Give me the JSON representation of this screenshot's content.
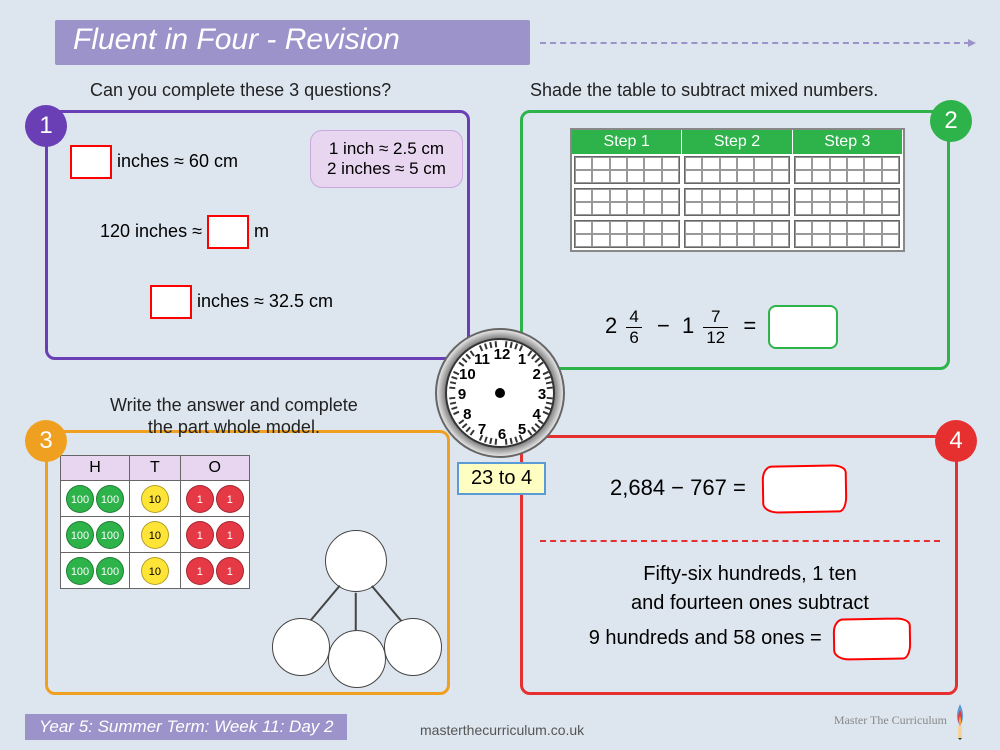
{
  "header": {
    "title": "Fluent in Four - Revision"
  },
  "panel1": {
    "color": "#6a3fb5",
    "badge": "1",
    "prompt": "Can you complete these 3 questions?",
    "line1_suffix": "inches ≈ 60 cm",
    "line2_prefix": "120 inches ≈",
    "line2_suffix": "m",
    "line3_suffix": "inches ≈ 32.5 cm",
    "hint1": "1 inch ≈ 2.5 cm",
    "hint2": "2 inches ≈ 5 cm"
  },
  "panel2": {
    "color": "#2db34a",
    "badge": "2",
    "prompt": "Shade the table to subtract mixed numbers.",
    "steps": [
      "Step 1",
      "Step 2",
      "Step 3"
    ],
    "eq_whole1": "2",
    "eq_n1": "4",
    "eq_d1": "6",
    "eq_op": "−",
    "eq_whole2": "1",
    "eq_n2": "7",
    "eq_d2": "12",
    "eq_eq": "="
  },
  "panel3": {
    "color": "#f0a020",
    "badge": "3",
    "prompt_l1": "Write the answer and complete",
    "prompt_l2": "the part whole model.",
    "headers": [
      "H",
      "T",
      "O"
    ],
    "rows": [
      [
        [
          "100",
          "100"
        ],
        [
          "10"
        ],
        [
          "1",
          "1"
        ]
      ],
      [
        [
          "100",
          "100"
        ],
        [
          "10"
        ],
        [
          "1",
          "1"
        ]
      ],
      [
        [
          "100",
          "100"
        ],
        [
          "10"
        ],
        [
          "1",
          "1"
        ]
      ]
    ]
  },
  "panel4": {
    "color": "#e63030",
    "badge": "4",
    "eq1": "2,684 − 767 =",
    "text_l1": "Fifty-six hundreds, 1 ten",
    "text_l2": "and fourteen ones subtract",
    "text_l3": "9 hundreds and 58 ones ="
  },
  "clock": {
    "time_label": "23 to 4"
  },
  "footer": {
    "text": "Year 5: Summer Term: Week 11: Day 2"
  },
  "site": "masterthecurriculum.co.uk",
  "logo": "Master The Curriculum"
}
